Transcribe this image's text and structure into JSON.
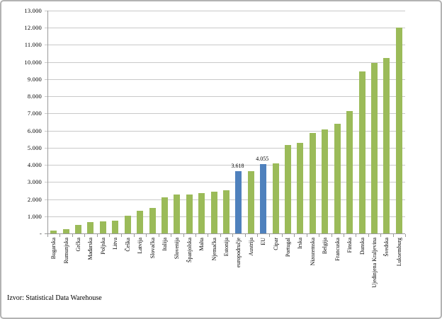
{
  "source_note": "Izvor: Statistical Data Warehouse",
  "colors": {
    "bar_green": "#9BBB59",
    "bar_blue": "#4F81BD",
    "gridline": "#C9C9C9",
    "axis": "#9A9A9A",
    "frame_border": "#B3B3B3",
    "text": "#000000"
  },
  "y_axis_ticks": [
    "13.000",
    "12.000",
    "11.000",
    "10.000",
    "9.000",
    "8.000",
    "7.000",
    "6.000",
    "5.000",
    "4.000",
    "3.000",
    "2.000",
    "1.000",
    "-"
  ],
  "chart_data": {
    "type": "bar",
    "title": "",
    "xlabel": "",
    "ylabel": "",
    "ylim": [
      0,
      13000
    ],
    "y_tick_step": 1000,
    "grid": true,
    "legend": "none",
    "categories": [
      "Bugarska",
      "Rumunjska",
      "Grčka",
      "Mađarska",
      "Poljska",
      "Litva",
      "Češka",
      "Latvija",
      "Slovačka",
      "Italija",
      "Slovenija",
      "Španjolska",
      "Malta",
      "Njemačka",
      "Estonija",
      "europodručje",
      "Austrija",
      "EU",
      "Cipar",
      "Portugal",
      "Irska",
      "Nizozemska",
      "Belgija",
      "Francuska",
      "Finska",
      "Danska",
      "Ujedinjena Kraljevina",
      "Švedska",
      "Luksemburg"
    ],
    "values": [
      170,
      240,
      500,
      670,
      720,
      760,
      1030,
      1320,
      1500,
      2100,
      2250,
      2280,
      2350,
      2420,
      2520,
      3618,
      3650,
      4055,
      4080,
      5160,
      5270,
      5840,
      6050,
      6390,
      7150,
      9450,
      9960,
      10250,
      12000
    ],
    "highlighted_categories": [
      "europodručje",
      "EU"
    ],
    "data_labels": [
      {
        "category": "europodručje",
        "text": "3.618"
      },
      {
        "category": "EU",
        "text": "4.055"
      }
    ]
  }
}
